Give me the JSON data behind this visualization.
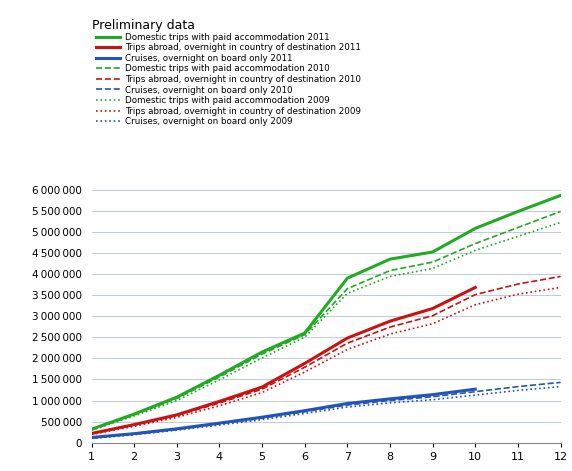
{
  "title": "Preliminary data",
  "months": [
    1,
    2,
    3,
    4,
    5,
    6,
    7,
    8,
    9,
    10,
    11,
    12
  ],
  "series": {
    "domestic_2011": [
      320000,
      680000,
      1080000,
      1600000,
      2150000,
      2600000,
      3900000,
      4350000,
      4520000,
      5080000,
      5480000,
      5860000
    ],
    "abroad_2011": [
      220000,
      430000,
      660000,
      980000,
      1320000,
      1880000,
      2480000,
      2880000,
      3180000,
      3680000,
      null,
      null
    ],
    "cruises_2011": [
      125000,
      215000,
      330000,
      465000,
      605000,
      760000,
      930000,
      1040000,
      1140000,
      1270000,
      null,
      null
    ],
    "domestic_2010": [
      305000,
      660000,
      1050000,
      1560000,
      2100000,
      2560000,
      3650000,
      4080000,
      4280000,
      4720000,
      5100000,
      5480000
    ],
    "abroad_2010": [
      210000,
      420000,
      645000,
      940000,
      1270000,
      1790000,
      2360000,
      2740000,
      3010000,
      3510000,
      3760000,
      3940000
    ],
    "cruises_2010": [
      112000,
      205000,
      315000,
      448000,
      582000,
      735000,
      893000,
      1000000,
      1090000,
      1210000,
      1330000,
      1430000
    ],
    "domestic_2009": [
      295000,
      635000,
      1000000,
      1490000,
      2010000,
      2500000,
      3540000,
      3940000,
      4130000,
      4560000,
      4890000,
      5220000
    ],
    "abroad_2009": [
      195000,
      390000,
      603000,
      875000,
      1190000,
      1675000,
      2210000,
      2575000,
      2820000,
      3270000,
      3520000,
      3680000
    ],
    "cruises_2009": [
      102000,
      190000,
      297000,
      420000,
      547000,
      694000,
      845000,
      945000,
      1020000,
      1130000,
      1240000,
      1330000
    ]
  },
  "colors": {
    "green": "#22aa22",
    "red": "#cc1111",
    "blue": "#2255bb"
  },
  "ylim": [
    0,
    6250000
  ],
  "yticks": [
    0,
    500000,
    1000000,
    1500000,
    2000000,
    2500000,
    3000000,
    3500000,
    4000000,
    4500000,
    5000000,
    5500000,
    6000000
  ],
  "legend_labels": [
    "Domestic trips with paid accommodation 2011",
    "Trips abroad, overnight in country of destination 2011",
    "Cruises, overnight on board only 2011",
    "Domestic trips with paid accommodation 2010",
    "Trips abroad, overnight in country of destination 2010",
    "Cruises, overnight on board only 2010",
    "Domestic trips with paid accommodation 2009",
    "Trips abroad, overnight in country of destination 2009",
    "Cruises, overnight on board only 2009"
  ],
  "legend_labels_clean": [
    "Domestic trips with paid accommodation 2011",
    "Trips abroad, overnight in country of destination 2011",
    "Cruises, overnight on board only 2011",
    "Domestic trips with paid accommodation 2010",
    "Trips abroad, overnight in country of destination 2010",
    "Cruises, overnight on board only 2010",
    "Domestic trips with paid accommodation 2009",
    "Trips abroad, overnight in country of destination 2009",
    "Cruises, overnight on board only 2009"
  ]
}
